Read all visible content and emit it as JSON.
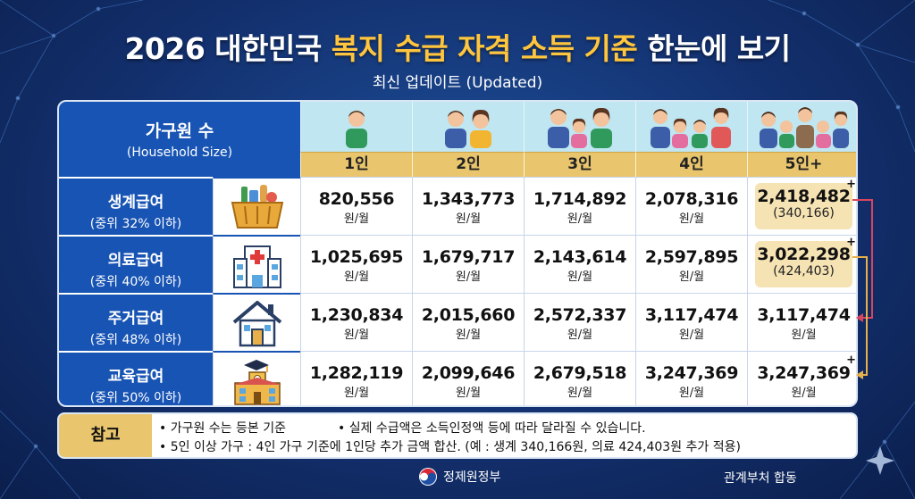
{
  "title": {
    "part1": "2026 대한민국 ",
    "highlight": "복지 수급 자격 소득 기준",
    "part2": " 한눈에 보기"
  },
  "subtitle": "최신 업데이트 (Updated)",
  "table": {
    "header": {
      "label_ko": "가구원 수",
      "label_en": "(Household Size)"
    },
    "columns": [
      "1인",
      "2인",
      "3인",
      "4인",
      "5인+"
    ],
    "column_icons": [
      "person-icon",
      "two-people-icon",
      "family-three-icon",
      "family-four-icon",
      "family-five-icon"
    ],
    "rows": [
      {
        "name": "생계급여",
        "sub": "(중위 32% 이하)",
        "icon": "basket-icon",
        "values": [
          "820,556",
          "1,343,773",
          "1,714,892",
          "2,078,316",
          "2,418,482"
        ],
        "extra": "(340,166)",
        "plus": "+"
      },
      {
        "name": "의료급여",
        "sub": "(중위 40% 이하)",
        "icon": "hospital-icon",
        "values": [
          "1,025,695",
          "1,679,717",
          "2,143,614",
          "2,597,895",
          "3,022,298"
        ],
        "extra": "(424,403)",
        "plus": "+"
      },
      {
        "name": "주거급여",
        "sub": "(중위 48% 이하)",
        "icon": "house-icon",
        "values": [
          "1,230,834",
          "2,015,660",
          "2,572,337",
          "3,117,474",
          "3,117,474"
        ],
        "extra": "",
        "plus": ""
      },
      {
        "name": "교육급여",
        "sub": "(중위 50% 이하)",
        "icon": "school-icon",
        "values": [
          "1,282,119",
          "2,099,646",
          "2,679,518",
          "3,247,369",
          "3,247,369"
        ],
        "extra": "",
        "plus": "+"
      }
    ],
    "unit": "원/월"
  },
  "note": {
    "label": "참고",
    "line1a": "• 가구원 수는 등본 기준",
    "line1b": "• 실제 수급액은 소득인정액 등에 따라 달라질 수 있습니다.",
    "line2": "• 5인 이상 가구 : 4인 가구 기준에 1인당 추가 금액 합산. (예 : 생계 340,166원, 의료 424,403원 추가 적용)"
  },
  "footer": {
    "gov": "정제원정부",
    "dept": "관계부처 합동"
  },
  "colors": {
    "navy": "#13306e",
    "blue": "#1854b4",
    "gold": "#e9c66e",
    "yellow": "#ffc53d",
    "highlight": "#f6e3b4",
    "arrow": "#d9455f"
  }
}
